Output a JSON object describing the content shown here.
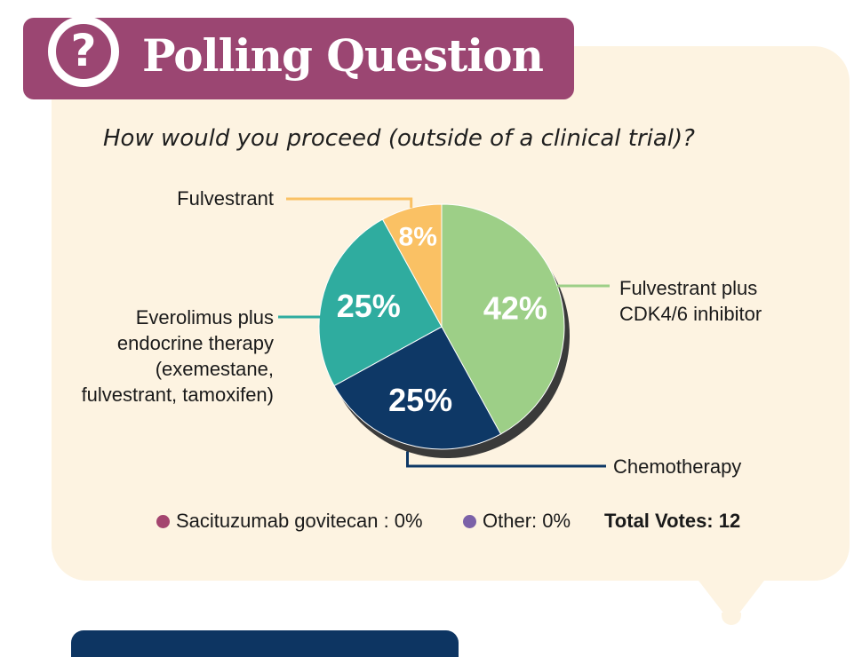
{
  "header": {
    "title": "Polling Question",
    "icon": "question-mark-icon"
  },
  "question": "How would you proceed (outside of a clinical trial)?",
  "chart_data": {
    "type": "pie",
    "title": "How would you proceed (outside of a clinical trial)?",
    "slices": [
      {
        "key": "fulv_cdk",
        "label_lines": [
          "Fulvestrant plus",
          "CDK4/6 inhibitor"
        ],
        "value": 42,
        "display": "42%",
        "color": "#9dcf87"
      },
      {
        "key": "chemo",
        "label_lines": [
          "Chemotherapy"
        ],
        "value": 25,
        "display": "25%",
        "color": "#0e3866"
      },
      {
        "key": "everolimus",
        "label_lines": [
          "Everolimus plus",
          "endocrine therapy",
          "(exemestane,",
          "fulvestrant, tamoxifen)"
        ],
        "value": 25,
        "display": "25%",
        "color": "#2fac9f"
      },
      {
        "key": "fulvestrant",
        "label_lines": [
          "Fulvestrant"
        ],
        "value": 8,
        "display": "8%",
        "color": "#fac164"
      }
    ],
    "zero_entries": [
      {
        "label": "Sacituzumab govitecan : 0%",
        "value": 0,
        "color": "#a4456f"
      },
      {
        "label": "Other: 0%",
        "value": 0,
        "color": "#7b61a8"
      }
    ],
    "total_votes_label": "Total Votes: 12",
    "total_votes": 12
  }
}
